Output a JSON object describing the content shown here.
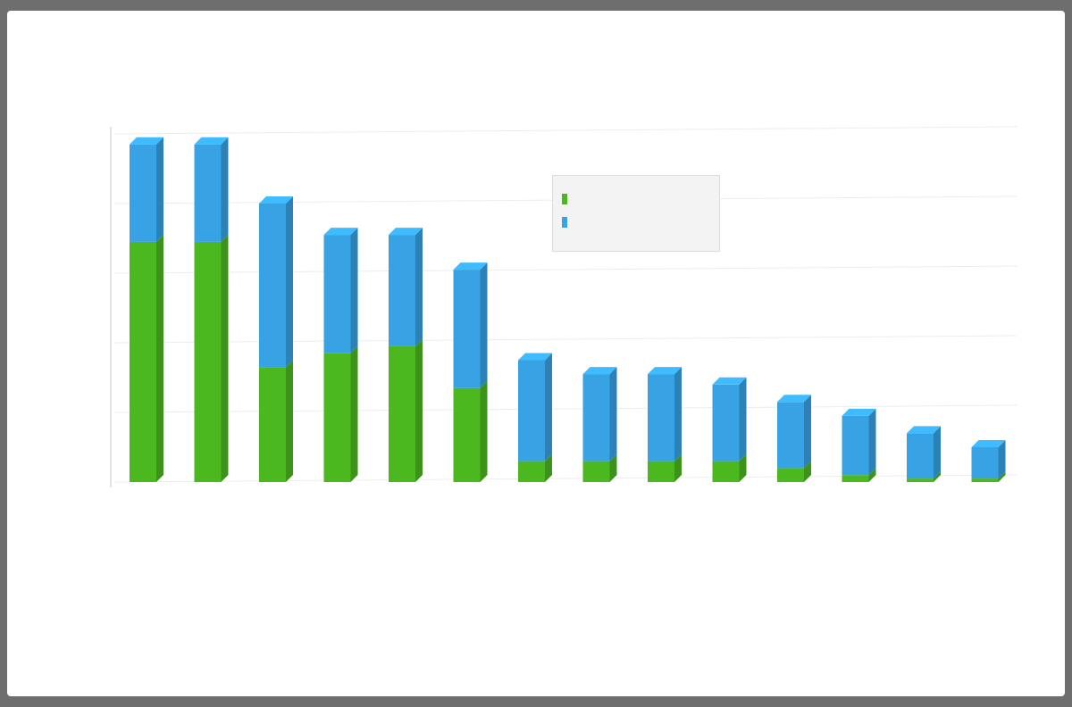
{
  "chart_data": {
    "type": "bar",
    "stacked": true,
    "three_d": true,
    "title": "",
    "xlabel": "",
    "ylabel": "",
    "ylim": [
      0,
      100
    ],
    "yticks": [
      0,
      20,
      40,
      60,
      80,
      100
    ],
    "tick_labels_y": [
      "",
      "",
      "",
      "",
      "",
      ""
    ],
    "categories": [
      "",
      "",
      "",
      "",
      "",
      "",
      "",
      "",
      "",
      "",
      "",
      "",
      "",
      ""
    ],
    "grid": true,
    "legend_position": "top-center",
    "colors": {
      "series1": "#4cb81f",
      "series2": "#37a3e4"
    },
    "series": [
      {
        "name": "",
        "values": [
          69,
          69,
          33,
          37,
          39,
          27,
          6,
          6,
          6,
          6,
          4,
          2,
          1,
          1
        ]
      },
      {
        "name": "",
        "values": [
          28,
          28,
          47,
          34,
          32,
          34,
          29,
          25,
          25,
          22,
          19,
          17,
          13,
          9
        ]
      }
    ]
  }
}
